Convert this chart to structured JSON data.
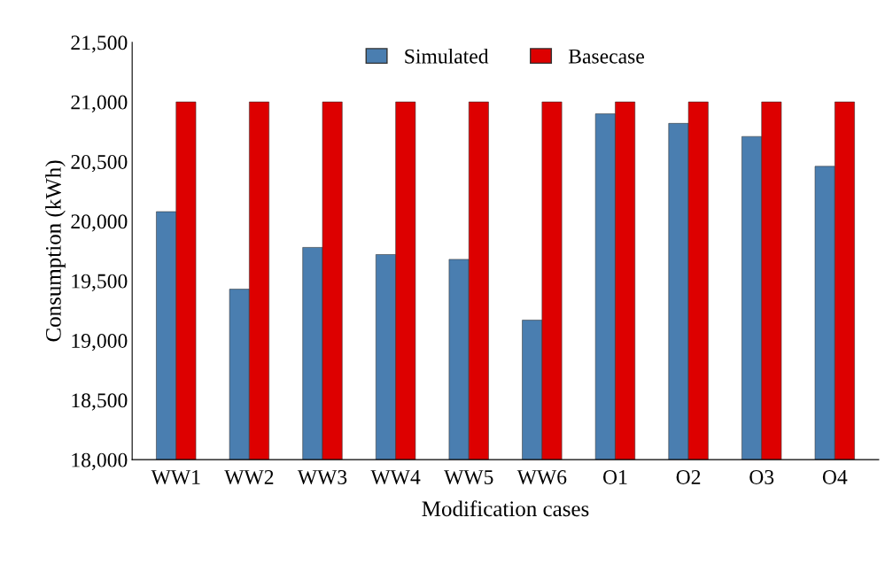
{
  "chart_data": {
    "type": "bar",
    "xlabel": "Modification cases",
    "ylabel": "Consumption (kWh)",
    "categories": [
      "WW1",
      "WW2",
      "WW3",
      "WW4",
      "WW5",
      "WW6",
      "O1",
      "O2",
      "O3",
      "O4"
    ],
    "series": [
      {
        "name": "Simulated",
        "color": "#4a7eb0",
        "values": [
          20080,
          19430,
          19780,
          19720,
          19680,
          19170,
          20900,
          20820,
          20710,
          20460
        ]
      },
      {
        "name": "Basecase",
        "color": "#dd0000",
        "values": [
          21000,
          21000,
          21000,
          21000,
          21000,
          21000,
          21000,
          21000,
          21000,
          21000
        ]
      }
    ],
    "ylim": [
      18000,
      21500
    ],
    "yticks": [
      {
        "value": 18000,
        "label": "18,000"
      },
      {
        "value": 18500,
        "label": "18,500"
      },
      {
        "value": 19000,
        "label": "19,000"
      },
      {
        "value": 19500,
        "label": "19,500"
      },
      {
        "value": 20000,
        "label": "20,000"
      },
      {
        "value": 20500,
        "label": "20,500"
      },
      {
        "value": 21000,
        "label": "21,000"
      },
      {
        "value": 21500,
        "label": "21,500"
      }
    ],
    "legend": "top"
  }
}
